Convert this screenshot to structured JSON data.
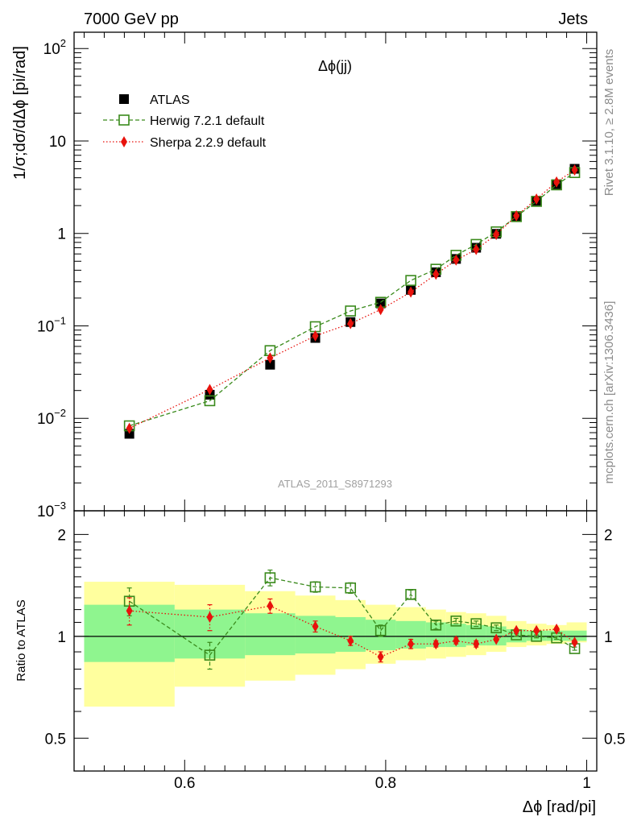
{
  "header": {
    "left": "7000 GeV pp",
    "right": "Jets"
  },
  "side_labels": {
    "rivet": "Rivet 3.1.10, ≥ 2.8M events",
    "mcplots": "mcplots.cern.ch [arXiv:1306.3436]"
  },
  "chart_data": [
    {
      "type": "scatter",
      "title": "Δϕ(jj)",
      "watermark": "ATLAS_2011_S8971293",
      "ylabel": "1/σ;dσ/dΔϕ [pi/rad]",
      "xlabel": "Δϕ [rad/pi]",
      "yscale": "log",
      "xlim": [
        0.49,
        1.01
      ],
      "ylim": [
        0.001,
        150
      ],
      "y_ticks": [
        {
          "value": 0.001,
          "base": "10",
          "exp": "−3"
        },
        {
          "value": 0.01,
          "base": "10",
          "exp": "−2"
        },
        {
          "value": 0.1,
          "base": "10",
          "exp": "−1"
        },
        {
          "value": 1,
          "base": "1",
          "exp": ""
        },
        {
          "value": 10,
          "base": "10",
          "exp": ""
        },
        {
          "value": 100,
          "base": "10",
          "exp": "2"
        }
      ],
      "legend_position": "top-left",
      "series": [
        {
          "name": "ATLAS",
          "color": "#000000",
          "marker": "square-filled",
          "x": [
            0.545,
            0.625,
            0.685,
            0.73,
            0.765,
            0.795,
            0.825,
            0.85,
            0.87,
            0.89,
            0.91,
            0.93,
            0.95,
            0.97,
            0.988
          ],
          "y": [
            0.0068,
            0.018,
            0.038,
            0.074,
            0.11,
            0.175,
            0.245,
            0.38,
            0.53,
            0.7,
            0.99,
            1.5,
            2.25,
            3.4,
            5.0
          ]
        },
        {
          "name": "Herwig 7.2.1 default",
          "color": "#3a8a1c",
          "marker": "square-open",
          "line": "dashed",
          "x": [
            0.545,
            0.625,
            0.685,
            0.73,
            0.765,
            0.795,
            0.825,
            0.85,
            0.87,
            0.89,
            0.91,
            0.93,
            0.95,
            0.97,
            0.988
          ],
          "y": [
            0.0083,
            0.0155,
            0.054,
            0.098,
            0.145,
            0.18,
            0.31,
            0.41,
            0.58,
            0.76,
            1.04,
            1.52,
            2.22,
            3.35,
            4.55
          ]
        },
        {
          "name": "Sherpa 2.2.9 default",
          "color": "#e8120c",
          "marker": "diamond-filled",
          "line": "dotted",
          "x": [
            0.545,
            0.625,
            0.685,
            0.73,
            0.765,
            0.795,
            0.825,
            0.85,
            0.87,
            0.89,
            0.91,
            0.93,
            0.95,
            0.97,
            0.988
          ],
          "y": [
            0.0078,
            0.0205,
            0.045,
            0.078,
            0.106,
            0.15,
            0.232,
            0.362,
            0.515,
            0.67,
            0.975,
            1.55,
            2.35,
            3.6,
            4.85
          ]
        }
      ]
    },
    {
      "type": "scatter",
      "ylabel": "Ratio to ATLAS",
      "xlabel": "Δϕ [rad/pi]",
      "yscale": "log",
      "xlim": [
        0.49,
        1.01
      ],
      "ylim": [
        0.4,
        2.35
      ],
      "x_ticks": [
        {
          "value": 0.6,
          "label": "0.6"
        },
        {
          "value": 0.8,
          "label": "0.8"
        },
        {
          "value": 1.0,
          "label": "1"
        }
      ],
      "y_ticks": [
        {
          "value": 0.5,
          "label": "0.5"
        },
        {
          "value": 1,
          "label": "1"
        },
        {
          "value": 2,
          "label": "2"
        }
      ],
      "bands": {
        "edges": [
          0.5,
          0.59,
          0.66,
          0.71,
          0.75,
          0.78,
          0.81,
          0.84,
          0.86,
          0.88,
          0.9,
          0.92,
          0.94,
          0.96,
          0.98,
          1.0
        ],
        "yellow_lo": [
          0.62,
          0.71,
          0.74,
          0.77,
          0.8,
          0.83,
          0.85,
          0.86,
          0.87,
          0.88,
          0.9,
          0.93,
          0.94,
          0.95,
          0.96
        ],
        "yellow_hi": [
          1.45,
          1.42,
          1.36,
          1.32,
          1.28,
          1.24,
          1.22,
          1.2,
          1.18,
          1.17,
          1.15,
          1.11,
          1.09,
          1.08,
          1.1
        ],
        "green_lo": [
          0.84,
          0.86,
          0.88,
          0.89,
          0.9,
          0.91,
          0.92,
          0.93,
          0.93,
          0.94,
          0.94,
          0.96,
          0.97,
          0.97,
          0.97
        ],
        "green_hi": [
          1.24,
          1.2,
          1.17,
          1.15,
          1.14,
          1.12,
          1.11,
          1.1,
          1.09,
          1.08,
          1.07,
          1.05,
          1.04,
          1.04,
          1.04
        ]
      },
      "series": [
        {
          "name": "Herwig 7.2.1 default",
          "color": "#3a8a1c",
          "marker": "square-open",
          "line": "dashed",
          "x": [
            0.545,
            0.625,
            0.685,
            0.73,
            0.765,
            0.795,
            0.825,
            0.85,
            0.87,
            0.89,
            0.91,
            0.93,
            0.95,
            0.97,
            0.988
          ],
          "y": [
            1.27,
            0.88,
            1.49,
            1.4,
            1.39,
            1.04,
            1.33,
            1.08,
            1.11,
            1.09,
            1.06,
            1.01,
            1.0,
            0.99,
            0.92
          ],
          "err": [
            0.12,
            0.08,
            0.08,
            0.05,
            0.05,
            0.04,
            0.04,
            0.03,
            0.02,
            0.02,
            0.02,
            0.01,
            0.01,
            0.01,
            0.01
          ]
        },
        {
          "name": "Sherpa 2.2.9 default",
          "color": "#e8120c",
          "marker": "diamond-filled",
          "line": "dotted",
          "x": [
            0.545,
            0.625,
            0.685,
            0.73,
            0.765,
            0.795,
            0.825,
            0.85,
            0.87,
            0.89,
            0.91,
            0.93,
            0.95,
            0.97,
            0.988
          ],
          "y": [
            1.19,
            1.14,
            1.23,
            1.07,
            0.97,
            0.87,
            0.95,
            0.95,
            0.97,
            0.95,
            0.98,
            1.04,
            1.04,
            1.05,
            0.96
          ],
          "err": [
            0.11,
            0.1,
            0.06,
            0.04,
            0.03,
            0.03,
            0.03,
            0.02,
            0.02,
            0.02,
            0.01,
            0.01,
            0.01,
            0.01,
            0.01
          ]
        }
      ]
    }
  ]
}
